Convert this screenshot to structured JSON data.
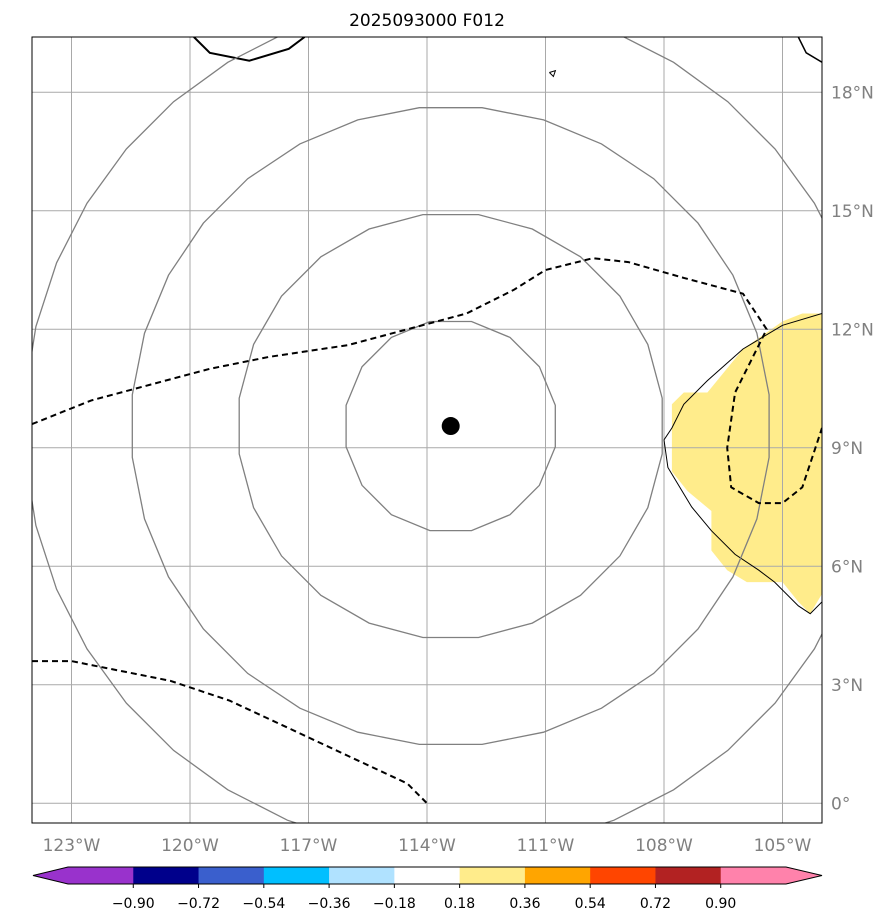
{
  "chart_data": {
    "type": "map",
    "title": "2025093000 F012",
    "map_extent": {
      "lon": [
        -124,
        -104
      ],
      "lat": [
        -0.5,
        19.4
      ]
    },
    "x_ticks": [
      "123°W",
      "120°W",
      "117°W",
      "114°W",
      "111°W",
      "108°W",
      "105°W"
    ],
    "x_tick_values": [
      -123,
      -120,
      -117,
      -114,
      -111,
      -108,
      -105
    ],
    "y_ticks": [
      "0°",
      "3°N",
      "6°N",
      "9°N",
      "12°N",
      "15°N",
      "18°N"
    ],
    "y_tick_values": [
      0,
      3,
      6,
      9,
      12,
      15,
      18
    ],
    "grid": true,
    "storm_center": {
      "lon": -113.4,
      "lat": 9.55
    },
    "range_rings_deg": [
      2.7,
      5.4,
      8.1,
      10.8
    ],
    "colorbar": {
      "ticks": [
        "−0.90",
        "−0.72",
        "−0.54",
        "−0.36",
        "−0.18",
        "0.18",
        "0.36",
        "0.54",
        "0.72",
        "0.90"
      ],
      "bounds": [
        -0.9,
        -0.72,
        -0.54,
        -0.36,
        -0.18,
        0.18,
        0.36,
        0.54,
        0.72,
        0.9
      ],
      "colors": [
        "#9932cc",
        "#00008b",
        "#3a5fcd",
        "#00bfff",
        "#b0e2ff",
        "#ffffff",
        "#ffec8b",
        "#ffa500",
        "#ff4500",
        "#b22222",
        "#ff82ab"
      ],
      "extend": "both"
    },
    "shaded_regions": [
      {
        "color": "#ffec8b",
        "level": "0.18–0.36",
        "polygon": [
          [
            -104,
            12.4
          ],
          [
            -104.5,
            12.4
          ],
          [
            -105,
            12.2
          ],
          [
            -106,
            11.5
          ],
          [
            -106.9,
            10.4
          ],
          [
            -107.5,
            10.4
          ],
          [
            -107.8,
            10.1
          ],
          [
            -107.8,
            8.4
          ],
          [
            -107.4,
            7.9
          ],
          [
            -106.8,
            7.4
          ],
          [
            -106.8,
            6.4
          ],
          [
            -106.4,
            5.9
          ],
          [
            -105.9,
            5.6
          ],
          [
            -105,
            5.6
          ],
          [
            -104.6,
            5.1
          ],
          [
            -104.3,
            4.8
          ],
          [
            -104,
            5.3
          ]
        ]
      }
    ],
    "dashed_contours": [
      {
        "points": [
          [
            -124,
            9.6
          ],
          [
            -122.5,
            10.2
          ],
          [
            -121,
            10.6
          ],
          [
            -119.5,
            11
          ],
          [
            -118,
            11.3
          ],
          [
            -116,
            11.6
          ],
          [
            -114.5,
            12
          ],
          [
            -113,
            12.4
          ],
          [
            -111.8,
            13
          ],
          [
            -111,
            13.5
          ],
          [
            -109.8,
            13.8
          ],
          [
            -108.9,
            13.7
          ],
          [
            -107.5,
            13.3
          ],
          [
            -106,
            12.9
          ],
          [
            -105.4,
            12
          ],
          [
            -105.8,
            11.2
          ],
          [
            -106.2,
            10.4
          ],
          [
            -106.4,
            9
          ],
          [
            -106.3,
            8
          ],
          [
            -105.6,
            7.6
          ],
          [
            -105,
            7.6
          ],
          [
            -104.5,
            8
          ],
          [
            -104,
            9.5
          ]
        ]
      },
      {
        "points": [
          [
            -124,
            3.6
          ],
          [
            -123,
            3.6
          ],
          [
            -122,
            3.4
          ],
          [
            -120.5,
            3.1
          ],
          [
            -119,
            2.6
          ],
          [
            -117.5,
            1.9
          ],
          [
            -116,
            1.2
          ],
          [
            -114.5,
            0.5
          ],
          [
            -114,
            0
          ]
        ]
      }
    ],
    "coastlines": [
      {
        "width": 2,
        "points": [
          [
            -119.9,
            19.4
          ],
          [
            -119.5,
            19
          ],
          [
            -118.5,
            18.8
          ],
          [
            -117.5,
            19.1
          ],
          [
            -117.1,
            19.4
          ]
        ]
      },
      {
        "width": 1.5,
        "points": [
          [
            -104.6,
            19.4
          ],
          [
            -104.4,
            19
          ],
          [
            -103.9,
            18.7
          ],
          [
            -103.6,
            18.5
          ],
          [
            -103.4,
            18.2
          ],
          [
            -103.1,
            17.9
          ]
        ]
      },
      {
        "width": 1,
        "points": [
          [
            -110.9,
            18.5
          ],
          [
            -110.8,
            18.4
          ],
          [
            -110.75,
            18.55
          ],
          [
            -110.9,
            18.5
          ]
        ]
      },
      {
        "width": 1,
        "points": [
          [
            -104,
            12.4
          ],
          [
            -105,
            12.1
          ],
          [
            -106,
            11.5
          ],
          [
            -106.9,
            10.7
          ],
          [
            -107.5,
            10.1
          ],
          [
            -107.8,
            9.5
          ],
          [
            -108,
            9.2
          ],
          [
            -107.9,
            8.5
          ],
          [
            -107.6,
            8
          ],
          [
            -107.3,
            7.5
          ],
          [
            -106.8,
            6.9
          ],
          [
            -106.2,
            6.3
          ],
          [
            -105.6,
            5.9
          ],
          [
            -105.2,
            5.6
          ],
          [
            -104.6,
            5
          ],
          [
            -104.3,
            4.8
          ],
          [
            -104,
            5.1
          ]
        ]
      }
    ]
  }
}
